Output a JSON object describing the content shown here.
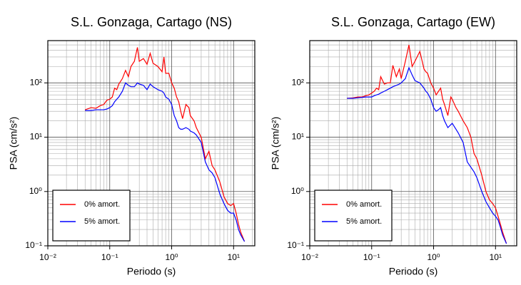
{
  "chart_data": [
    {
      "type": "line",
      "title": "S.L. Gonzaga, Cartago (NS)",
      "xlabel": "Periodo (s)",
      "ylabel": "PSA (cm/s²)",
      "xscale": "log",
      "yscale": "log",
      "grid": true,
      "legend": "lower left",
      "xlim": [
        0.01,
        22
      ],
      "ylim": [
        0.1,
        600
      ],
      "xticks": [
        {
          "value": 0.01,
          "label": "10⁻²"
        },
        {
          "value": 0.1,
          "label": "10⁻¹"
        },
        {
          "value": 1,
          "label": "10⁰"
        },
        {
          "value": 10,
          "label": "10¹"
        }
      ],
      "yticks": [
        {
          "value": 0.1,
          "label": "10⁻¹"
        },
        {
          "value": 1,
          "label": "10⁰"
        },
        {
          "value": 10,
          "label": "10¹"
        },
        {
          "value": 100,
          "label": "10²"
        }
      ],
      "x": [
        0.04,
        0.05,
        0.06,
        0.07,
        0.08,
        0.09,
        0.1,
        0.11,
        0.12,
        0.13,
        0.14,
        0.16,
        0.18,
        0.2,
        0.22,
        0.25,
        0.28,
        0.3,
        0.35,
        0.4,
        0.45,
        0.5,
        0.6,
        0.7,
        0.75,
        0.8,
        0.9,
        1.0,
        1.1,
        1.2,
        1.3,
        1.4,
        1.5,
        1.7,
        1.9,
        2.0,
        2.3,
        2.5,
        3.0,
        3.5,
        4.0,
        4.5,
        5.0,
        6.0,
        7.0,
        8.0,
        9.0,
        10,
        11,
        12,
        13,
        15
      ],
      "series": [
        {
          "name": "0% amort.",
          "color": "#ff0000",
          "values": [
            32,
            35,
            34,
            38,
            40,
            48,
            50,
            55,
            80,
            75,
            95,
            120,
            170,
            130,
            200,
            250,
            450,
            250,
            280,
            220,
            350,
            230,
            200,
            160,
            300,
            150,
            150,
            100,
            80,
            55,
            45,
            30,
            22,
            40,
            35,
            25,
            20,
            15,
            10,
            4,
            5.5,
            3,
            2.5,
            1.5,
            0.8,
            0.6,
            0.55,
            0.6,
            0.4,
            0.25,
            0.18,
            0.12
          ]
        },
        {
          "name": "5% amort.",
          "color": "#0000ff",
          "values": [
            31,
            31,
            32,
            32,
            32,
            33,
            35,
            38,
            45,
            50,
            55,
            70,
            100,
            90,
            85,
            85,
            100,
            95,
            90,
            75,
            95,
            85,
            75,
            70,
            65,
            55,
            50,
            40,
            25,
            20,
            15,
            14,
            14,
            15,
            14,
            13,
            12,
            11,
            8,
            3.5,
            2.5,
            2.2,
            1.8,
            0.9,
            0.6,
            0.45,
            0.4,
            0.4,
            0.3,
            0.2,
            0.16,
            0.12
          ]
        }
      ]
    },
    {
      "type": "line",
      "title": "S.L. Gonzaga, Cartago (EW)",
      "xlabel": "Periodo (s)",
      "ylabel": "PSA (cm/s²)",
      "xscale": "log",
      "yscale": "log",
      "grid": true,
      "legend": "lower left",
      "xlim": [
        0.01,
        22
      ],
      "ylim": [
        0.1,
        600
      ],
      "xticks": [
        {
          "value": 0.01,
          "label": "10⁻²"
        },
        {
          "value": 0.1,
          "label": "10⁻¹"
        },
        {
          "value": 1,
          "label": "10⁰"
        },
        {
          "value": 10,
          "label": "10¹"
        }
      ],
      "yticks": [
        {
          "value": 0.1,
          "label": "10⁻¹"
        },
        {
          "value": 1,
          "label": "10⁰"
        },
        {
          "value": 10,
          "label": "10¹"
        },
        {
          "value": 100,
          "label": "10²"
        }
      ],
      "x": [
        0.04,
        0.05,
        0.06,
        0.07,
        0.08,
        0.09,
        0.1,
        0.11,
        0.12,
        0.13,
        0.14,
        0.16,
        0.18,
        0.2,
        0.22,
        0.25,
        0.28,
        0.3,
        0.35,
        0.4,
        0.45,
        0.5,
        0.6,
        0.7,
        0.75,
        0.8,
        0.9,
        1.0,
        1.1,
        1.2,
        1.3,
        1.4,
        1.5,
        1.7,
        1.9,
        2.0,
        2.3,
        2.5,
        3.0,
        3.5,
        4.0,
        4.5,
        5.0,
        6.0,
        7.0,
        8.0,
        9.0,
        10,
        11,
        12,
        13,
        15
      ],
      "series": [
        {
          "name": "0% amort.",
          "color": "#ff0000",
          "values": [
            52,
            53,
            55,
            55,
            58,
            60,
            65,
            70,
            80,
            75,
            130,
            95,
            100,
            100,
            210,
            130,
            180,
            120,
            250,
            500,
            200,
            250,
            380,
            180,
            160,
            150,
            100,
            80,
            60,
            70,
            80,
            50,
            40,
            25,
            55,
            50,
            35,
            30,
            20,
            15,
            10,
            5,
            4,
            2,
            1,
            0.7,
            0.6,
            0.5,
            0.35,
            0.25,
            0.18,
            0.11
          ]
        },
        {
          "name": "5% amort.",
          "color": "#0000ff",
          "values": [
            52,
            52,
            53,
            54,
            55,
            55,
            55,
            58,
            60,
            62,
            65,
            70,
            75,
            80,
            85,
            90,
            95,
            100,
            120,
            190,
            140,
            110,
            100,
            80,
            70,
            65,
            50,
            35,
            30,
            32,
            35,
            25,
            20,
            15,
            17,
            18,
            14,
            12,
            8,
            3.5,
            2.8,
            2.3,
            1.8,
            1.0,
            0.65,
            0.5,
            0.4,
            0.35,
            0.3,
            0.22,
            0.16,
            0.11
          ]
        }
      ]
    }
  ]
}
